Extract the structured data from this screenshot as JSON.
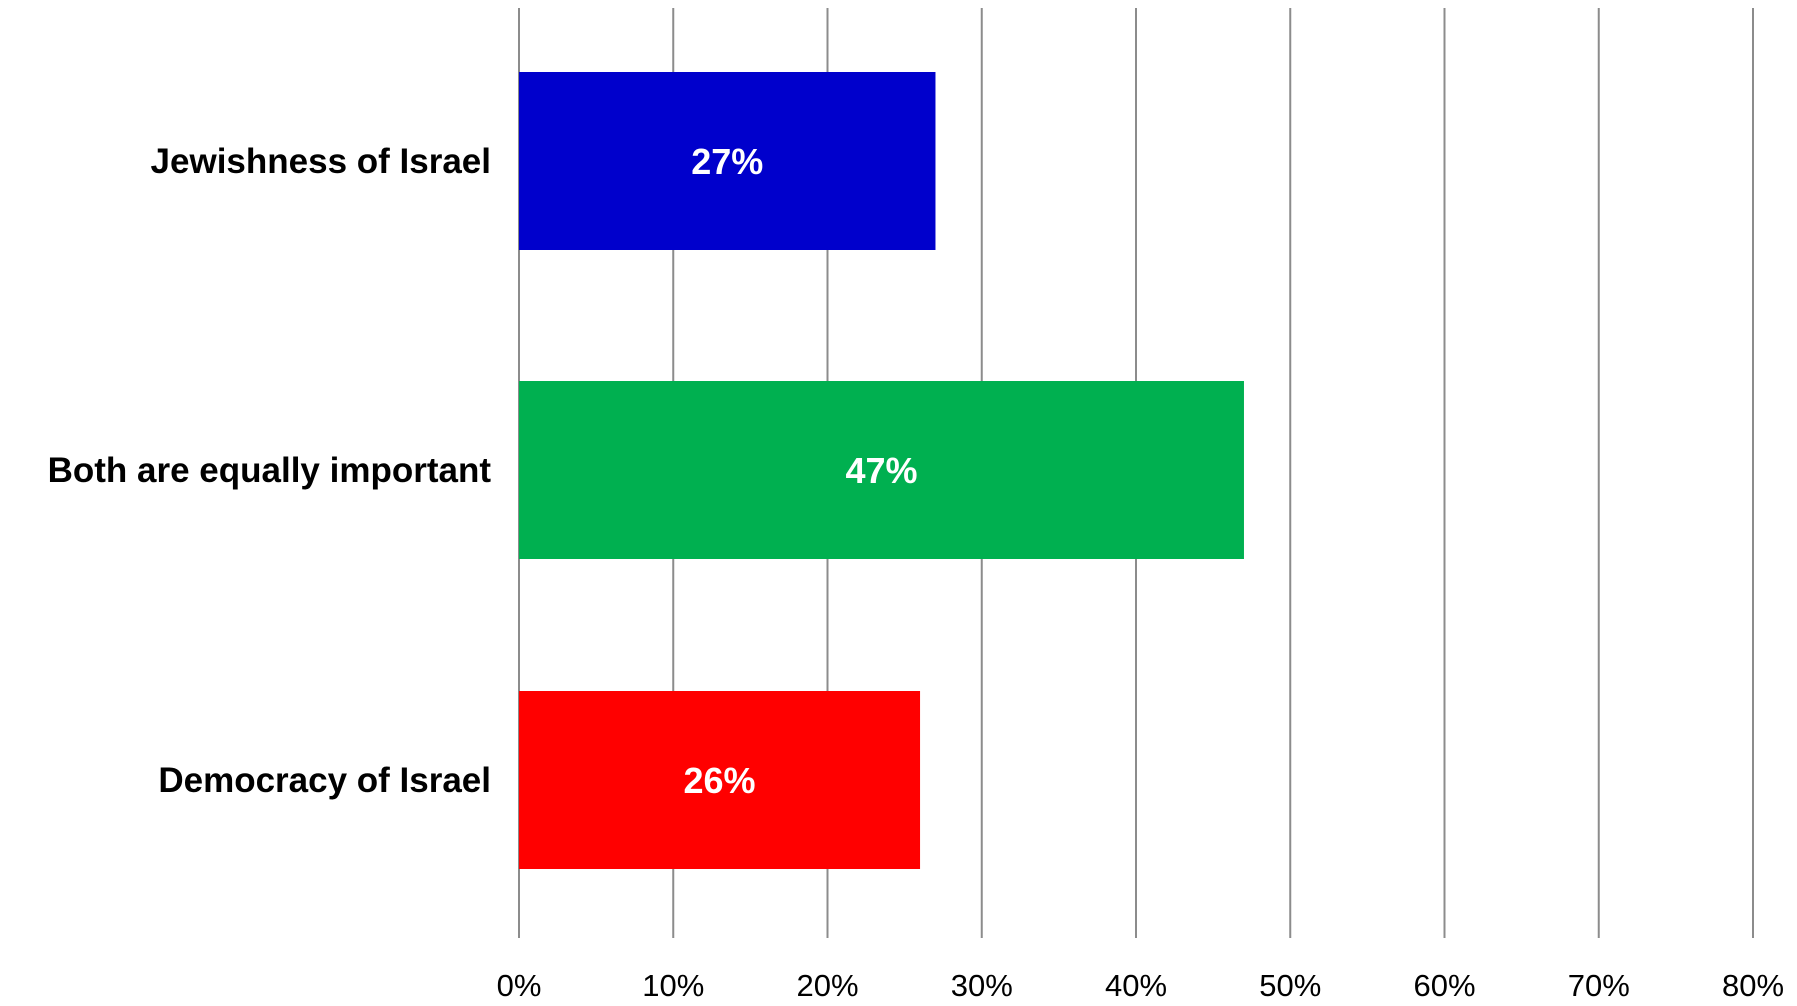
{
  "chart_data": {
    "type": "bar",
    "orientation": "horizontal",
    "title": "",
    "xlabel": "",
    "ylabel": "",
    "categories": [
      "Jewishness of Israel",
      "Both are equally important",
      "Democracy of Israel"
    ],
    "values": [
      27,
      47,
      26
    ],
    "data_labels": [
      "27%",
      "47%",
      "26%"
    ],
    "colors": [
      "#0000CC",
      "#00B050",
      "#FF0000"
    ],
    "xlim": [
      0,
      80
    ],
    "x_ticks": [
      0,
      10,
      20,
      30,
      40,
      50,
      60,
      70,
      80
    ],
    "x_tick_labels": [
      "0%",
      "10%",
      "20%",
      "30%",
      "40%",
      "50%",
      "60%",
      "70%",
      "80%"
    ],
    "grid": "vertical",
    "legend": "none"
  }
}
